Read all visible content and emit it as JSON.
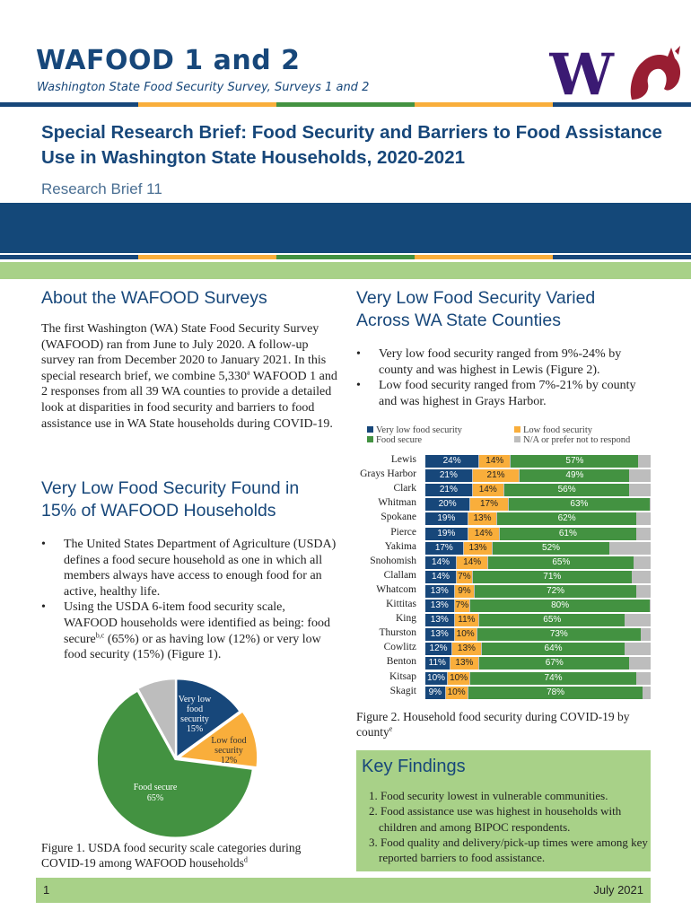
{
  "header": {
    "title": "WAFOOD 1 and 2",
    "subtitle": "Washington State Food Security Survey, Surveys 1 and 2",
    "logo_letter": "W",
    "stripe_colors": [
      "#17477a",
      "#f9ae3b",
      "#439241",
      "#f9ae3b",
      "#17477a"
    ]
  },
  "brief": {
    "title": "Special Research Brief: Food Security and Barriers to Food Assistance Use in Washington State Households, 2020-2021",
    "subtitle": "Research Brief 11"
  },
  "about": {
    "heading": "About the WAFOOD Surveys",
    "body_part1": "The first Washington (WA) State Food Security Survey (WAFOOD) ran from June to July 2020. A follow-up survey ran from December 2020 to January 2021. In this special research brief, we combine 5,330",
    "body_sup": "a",
    "body_part2": " WAFOOD 1 and 2 responses from all 39 WA counties to provide a detailed look at disparities in food security and barriers to food assistance use in WA State households during COVID-19."
  },
  "vlfs_section": {
    "heading": "Very Low Food Security Found in 15% of WAFOOD Households",
    "bullet1": "The United States Department of Agriculture (USDA) defines a food secure household as one in which all members always have access to enough food for an active, healthy life.",
    "bullet2_part1": "Using the USDA 6-item food security scale, WAFOOD households were identified as being: food secure",
    "bullet2_sup": "b,c",
    "bullet2_part2": " (65%) or as having low (12%) or very low food security (15%) (Figure 1)."
  },
  "figure1": {
    "caption_text": "Figure 1. USDA food security scale categories during COVID-19 among WAFOOD households",
    "caption_sup": "d"
  },
  "county_section": {
    "heading": "Very Low Food Security Varied Across WA State Counties",
    "bullet1": "Very low food security ranged from 9%-24% by county and was highest in Lewis (Figure 2).",
    "bullet2": "Low food security ranged from 7%-21% by county and was highest in Grays Harbor."
  },
  "figure2": {
    "caption_text": "Figure 2. Household food security during COVID-19 by county",
    "caption_sup": "e"
  },
  "key_findings": {
    "heading": "Key Findings",
    "items": [
      "1. Food security lowest in vulnerable communities.",
      "2. Food assistance use was highest in households with children and among BIPOC respondents.",
      "3. Food quality and delivery/pick-up times were among key reported barriers to food assistance."
    ]
  },
  "footer": {
    "page_number": "1",
    "date": "July 2021"
  },
  "chart_data": [
    {
      "type": "pie",
      "title": "Figure 1. USDA food security scale categories during COVID-19 among WAFOOD households",
      "slices": [
        {
          "label_line1": "Very low",
          "label_line2": "food",
          "label_line3": "security",
          "value_label": "15%",
          "value": 15,
          "color": "#17477a"
        },
        {
          "label_line1": "Low food",
          "label_line2": "security",
          "value_label": "12%",
          "value": 12,
          "color": "#f9ae3b"
        },
        {
          "label_line1": "Food secure",
          "value_label": "65%",
          "value": 65,
          "color": "#439241"
        },
        {
          "value": 8,
          "color": "#bdbdbd"
        }
      ]
    },
    {
      "type": "bar",
      "orientation": "horizontal-stacked",
      "title": "Figure 2. Household food security during COVID-19 by county",
      "legend": [
        {
          "label": "Very low food security",
          "color": "#17477a"
        },
        {
          "label": "Low food security",
          "color": "#f9ae3b"
        },
        {
          "label": "Food secure",
          "color": "#439241"
        },
        {
          "label": "N/A or prefer not to respond",
          "color": "#bdbdbd"
        }
      ],
      "legend_position": "top",
      "xlim": [
        0,
        100
      ],
      "categories": [
        "Lewis",
        "Grays Harbor",
        "Clark",
        "Whitman",
        "Spokane",
        "Pierce",
        "Yakima",
        "Snohomish",
        "Clallam",
        "Whatcom",
        "Kittitas",
        "King",
        "Thurston",
        "Cowlitz",
        "Benton",
        "Kitsap",
        "Skagit"
      ],
      "series": [
        {
          "name": "Very low food security",
          "values": [
            24,
            21,
            21,
            20,
            19,
            19,
            17,
            14,
            14,
            13,
            13,
            13,
            13,
            12,
            11,
            10,
            9
          ]
        },
        {
          "name": "Low food security",
          "values": [
            14,
            21,
            14,
            17,
            13,
            14,
            13,
            14,
            7,
            9,
            7,
            11,
            10,
            13,
            13,
            10,
            10
          ]
        },
        {
          "name": "Food secure",
          "values": [
            57,
            49,
            56,
            63,
            62,
            61,
            52,
            65,
            71,
            72,
            80,
            65,
            73,
            64,
            67,
            74,
            78
          ]
        }
      ]
    }
  ]
}
